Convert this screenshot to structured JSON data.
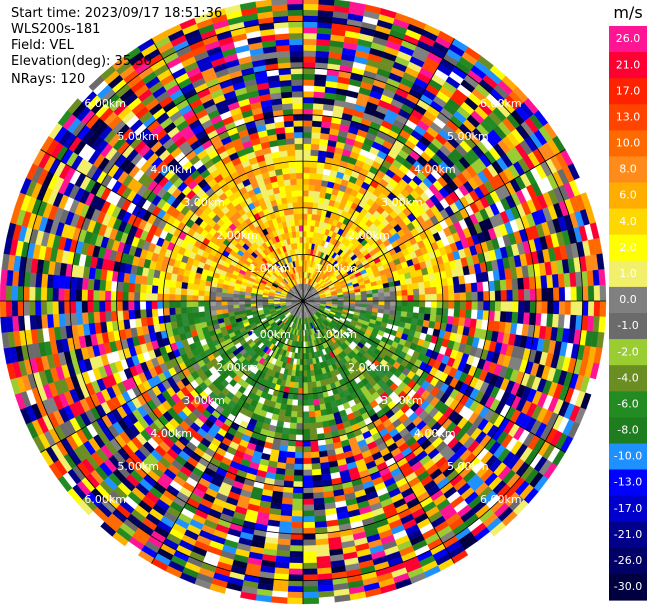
{
  "header": {
    "start_time": "Start time: 2023/09/17 18:51:36",
    "instrument": "WLS200s-181",
    "field": "Field: VEL",
    "elevation": "Elevation(deg): 35.30",
    "nrays": "NRays: 120"
  },
  "chart_data": {
    "type": "heatmap",
    "projection": "polar-ppi",
    "field": "VEL",
    "units": "m/s",
    "nrays": 120,
    "elevation_deg": 35.3,
    "max_range_km": 6.5,
    "range_rings_km": [
      1,
      2,
      3,
      4,
      5,
      6
    ],
    "ring_labels": [
      "1.00km",
      "2.00km",
      "3.00km",
      "4.00km",
      "5.00km",
      "6.00km"
    ],
    "spokes_deg": [
      0,
      30,
      60,
      90,
      120,
      150,
      180,
      210,
      240,
      270,
      300,
      330
    ],
    "velocity_pattern": {
      "north_sector_near_km": 3.1,
      "north_sector_velocity": "2.0 to 8.0 (yellow/orange)",
      "south_sector_near_km": 2.6,
      "south_sector_velocity": "-4.0 to -8.0 (green)",
      "far_range": "noise, full colour range"
    },
    "colorbar": {
      "label": "m/s",
      "ticks": [
        "26.0",
        "21.0",
        "17.0",
        "13.0",
        "10.0",
        "8.0",
        "6.0",
        "4.0",
        "2.0",
        "1.0",
        "0.0",
        "-1.0",
        "-2.0",
        "-4.0",
        "-6.0",
        "-8.0",
        "-10.0",
        "-13.0",
        "-17.0",
        "-21.0",
        "-26.0",
        "-30.0"
      ],
      "colors": [
        "#ff1493",
        "#ff0033",
        "#ff2200",
        "#ff4400",
        "#ff6a00",
        "#ff8c1a",
        "#ffae00",
        "#ffd700",
        "#ffff00",
        "#f2ef6a",
        "#808080",
        "#6b6b6b",
        "#9acd32",
        "#6b8e23",
        "#228b22",
        "#1e7d1e",
        "#1e90ff",
        "#0000ff",
        "#0000cd",
        "#00008b",
        "#000066",
        "#000040"
      ]
    }
  }
}
